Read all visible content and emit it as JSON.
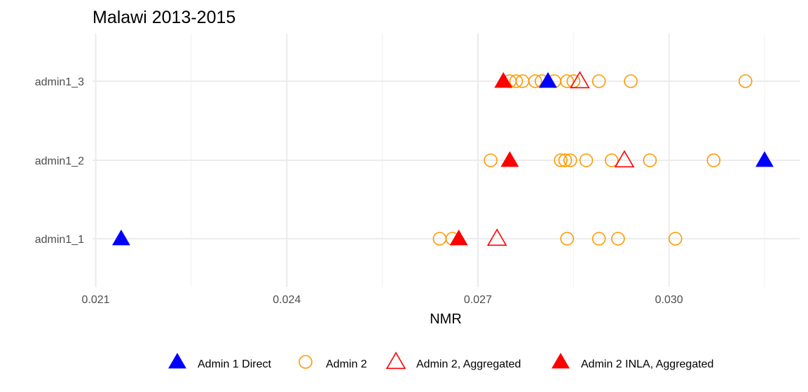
{
  "chart_data": {
    "type": "scatter",
    "title": "Malawi 2013-2015",
    "xlabel": "NMR",
    "ylabel": "",
    "xlim": [
      0.02095,
      0.03205
    ],
    "x_major_ticks": [
      0.021,
      0.024,
      0.027,
      0.03
    ],
    "x_minor_ticks": [
      0.0225,
      0.0255,
      0.0285,
      0.0315
    ],
    "x_tick_labels": [
      "0.021",
      "0.024",
      "0.027",
      "0.030"
    ],
    "categories": [
      "admin1_1",
      "admin1_2",
      "admin1_3"
    ],
    "legend_position": "bottom",
    "series": [
      {
        "name": "Admin 1 Direct",
        "shape": "triangle-filled",
        "color": "#0000ff",
        "points": [
          {
            "y": "admin1_1",
            "x": 0.0214
          },
          {
            "y": "admin1_2",
            "x": 0.0315
          },
          {
            "y": "admin1_3",
            "x": 0.0281
          }
        ]
      },
      {
        "name": "Admin 2",
        "shape": "circle-open",
        "color": "#ff9900",
        "points": [
          {
            "y": "admin1_1",
            "x": 0.0264
          },
          {
            "y": "admin1_1",
            "x": 0.0266
          },
          {
            "y": "admin1_1",
            "x": 0.0284
          },
          {
            "y": "admin1_1",
            "x": 0.0289
          },
          {
            "y": "admin1_1",
            "x": 0.0292
          },
          {
            "y": "admin1_1",
            "x": 0.0301
          },
          {
            "y": "admin1_2",
            "x": 0.0272
          },
          {
            "y": "admin1_2",
            "x": 0.0283
          },
          {
            "y": "admin1_2",
            "x": 0.02837
          },
          {
            "y": "admin1_2",
            "x": 0.02845
          },
          {
            "y": "admin1_2",
            "x": 0.0287
          },
          {
            "y": "admin1_2",
            "x": 0.0291
          },
          {
            "y": "admin1_2",
            "x": 0.0297
          },
          {
            "y": "admin1_2",
            "x": 0.0307
          },
          {
            "y": "admin1_3",
            "x": 0.0275
          },
          {
            "y": "admin1_3",
            "x": 0.0276
          },
          {
            "y": "admin1_3",
            "x": 0.0277
          },
          {
            "y": "admin1_3",
            "x": 0.0279
          },
          {
            "y": "admin1_3",
            "x": 0.028
          },
          {
            "y": "admin1_3",
            "x": 0.0282
          },
          {
            "y": "admin1_3",
            "x": 0.0284
          },
          {
            "y": "admin1_3",
            "x": 0.0285
          },
          {
            "y": "admin1_3",
            "x": 0.0289
          },
          {
            "y": "admin1_3",
            "x": 0.0294
          },
          {
            "y": "admin1_3",
            "x": 0.0312
          }
        ]
      },
      {
        "name": "Admin 2, Aggregated",
        "shape": "triangle-open",
        "color": "#ff0000",
        "points": [
          {
            "y": "admin1_1",
            "x": 0.0273
          },
          {
            "y": "admin1_2",
            "x": 0.0293
          },
          {
            "y": "admin1_3",
            "x": 0.0286
          }
        ]
      },
      {
        "name": "Admin 2 INLA, Aggregated",
        "shape": "triangle-filled",
        "color": "#ff0000",
        "points": [
          {
            "y": "admin1_1",
            "x": 0.0267
          },
          {
            "y": "admin1_2",
            "x": 0.0275
          },
          {
            "y": "admin1_3",
            "x": 0.0274
          }
        ]
      }
    ]
  }
}
